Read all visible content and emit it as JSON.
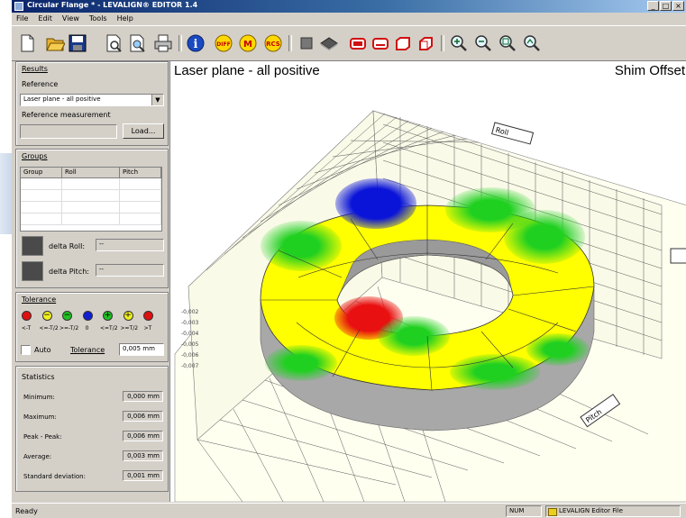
{
  "window": {
    "title": "Circular Flange * - LEVALIGN® EDITOR 1.4",
    "min": "_",
    "max": "□",
    "close": "×"
  },
  "menu": [
    "File",
    "Edit",
    "View",
    "Tools",
    "Help"
  ],
  "toolbar": [
    {
      "name": "new-icon"
    },
    {
      "name": "open-folder-icon"
    },
    {
      "name": "save-icon"
    },
    {
      "name": "print-preview-icon"
    },
    {
      "name": "zoom-preview-icon"
    },
    {
      "name": "printer-icon"
    },
    {
      "name": "info-icon",
      "label": "i"
    },
    {
      "name": "diff-icon",
      "label": "DIFF"
    },
    {
      "name": "mean-icon",
      "label": "M"
    },
    {
      "name": "rcs-icon",
      "label": "RCS"
    },
    {
      "name": "square-view-icon"
    },
    {
      "name": "diamond-view-icon"
    },
    {
      "name": "ring-view-1-icon"
    },
    {
      "name": "ring-view-2-icon"
    },
    {
      "name": "ring-view-3-icon"
    },
    {
      "name": "ring-view-4-icon"
    },
    {
      "name": "zoom-in-icon"
    },
    {
      "name": "zoom-out-icon"
    },
    {
      "name": "zoom-window-icon"
    },
    {
      "name": "zoom-reset-icon"
    }
  ],
  "results": {
    "group_title": "Results",
    "reference_label": "Reference",
    "reference_value": "Laser plane - all positive",
    "ref_measurement_label": "Reference measurement",
    "load_button": "Load..."
  },
  "groups": {
    "group_title": "Groups",
    "columns": [
      "Group",
      "Roll",
      "Pitch"
    ],
    "delta_roll_label": "delta Roll:",
    "delta_roll_value": "--",
    "delta_pitch_label": "delta Pitch:",
    "delta_pitch_value": "--"
  },
  "tolerance": {
    "group_title": "Tolerance",
    "legend": [
      {
        "color": "#e01010",
        "symbol": "",
        "label": "<-T"
      },
      {
        "color": "#f0f020",
        "symbol": "−",
        "label": "<=-T/2"
      },
      {
        "color": "#20c020",
        "symbol": "−",
        "label": ">=-T/2"
      },
      {
        "color": "#1020d0",
        "symbol": "",
        "label": "0"
      },
      {
        "color": "#20c020",
        "symbol": "+",
        "label": "<=T/2"
      },
      {
        "color": "#f0f020",
        "symbol": "+",
        "label": ">=T/2"
      },
      {
        "color": "#e01010",
        "symbol": "",
        "label": ">T"
      }
    ],
    "auto_label": "Auto",
    "tolerance_label": "Tolerance",
    "tolerance_value": "0,005 mm"
  },
  "statistics": {
    "group_title": "Statistics",
    "rows": [
      {
        "label": "Minimum:",
        "value": "0,000 mm"
      },
      {
        "label": "Maximum:",
        "value": "0,006 mm"
      },
      {
        "label": "Peak - Peak:",
        "value": "0,006 mm"
      },
      {
        "label": "Average:",
        "value": "0,003 mm"
      },
      {
        "label": "Standard deviation:",
        "value": "0,001 mm"
      }
    ]
  },
  "view": {
    "title_left": "Laser plane - all positive",
    "title_right": "Shim Offset",
    "roll_label": "Roll",
    "pitch_label": "Pitch",
    "colors": {
      "yellow": "#ffff00",
      "green": "#20d020",
      "blue": "#0a14d8",
      "red": "#e81010",
      "wall": "#a8a8a8",
      "floor": "#fffff0"
    }
  },
  "status": {
    "ready": "Ready",
    "num": "NUM",
    "file": "LEVALIGN Editor File"
  }
}
